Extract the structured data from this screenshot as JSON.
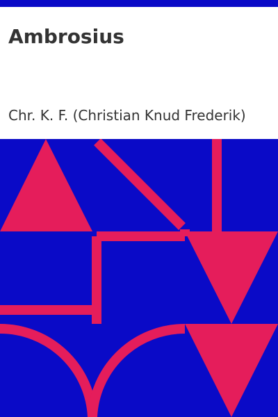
{
  "cover": {
    "title": "Ambrosius",
    "author": "Chr. K. F. (Christian Knud Frederik)"
  },
  "colors": {
    "blue": "#0a0ac7",
    "pink": "#e51d5b",
    "text": "#333333",
    "panel": "#ffffff"
  }
}
